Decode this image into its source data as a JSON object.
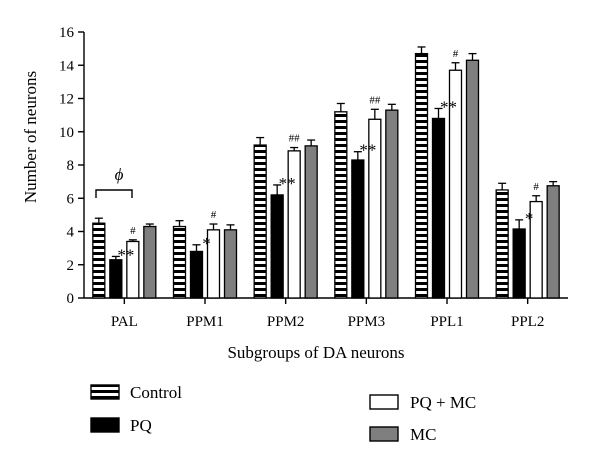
{
  "chart_data": {
    "type": "bar",
    "xlabel": "Subgroups of DA neurons",
    "ylabel": "Number of neurons",
    "ylim": [
      0,
      16
    ],
    "yticks": [
      "0",
      "2",
      "4",
      "6",
      "8",
      "10",
      "12",
      "14",
      "16"
    ],
    "categories": [
      "PAL",
      "PPM1",
      "PPM2",
      "PPM3",
      "PPL1",
      "PPL2"
    ],
    "series": [
      {
        "name": "Control",
        "pattern": "striped",
        "color": "#000000",
        "values": [
          4.5,
          4.3,
          9.2,
          11.2,
          14.7,
          6.5
        ],
        "errors": [
          0.3,
          0.35,
          0.45,
          0.5,
          0.4,
          0.4
        ]
      },
      {
        "name": "PQ",
        "pattern": "solid",
        "color": "#000000",
        "values": [
          2.3,
          2.8,
          6.2,
          8.3,
          10.8,
          4.15
        ],
        "errors": [
          0.2,
          0.4,
          0.6,
          0.5,
          0.6,
          0.55
        ]
      },
      {
        "name": "PQ + MC",
        "pattern": "open",
        "color": "#ffffff",
        "values": [
          3.4,
          4.1,
          8.85,
          10.75,
          13.7,
          5.8
        ],
        "errors": [
          0.1,
          0.35,
          0.2,
          0.6,
          0.45,
          0.35
        ]
      },
      {
        "name": "MC",
        "pattern": "solid",
        "color": "#7f7f7f",
        "values": [
          4.3,
          4.1,
          9.15,
          11.3,
          14.3,
          6.75
        ],
        "errors": [
          0.15,
          0.3,
          0.35,
          0.35,
          0.4,
          0.25
        ]
      }
    ],
    "annotations": {
      "pq": [
        "**",
        "*",
        "**",
        "**",
        "**",
        "*"
      ],
      "pq_mc": [
        "#",
        "#",
        "##",
        "##",
        "#",
        "#"
      ],
      "bracket_label": "ϕ"
    },
    "legend_position": "bottom",
    "grid": false
  }
}
